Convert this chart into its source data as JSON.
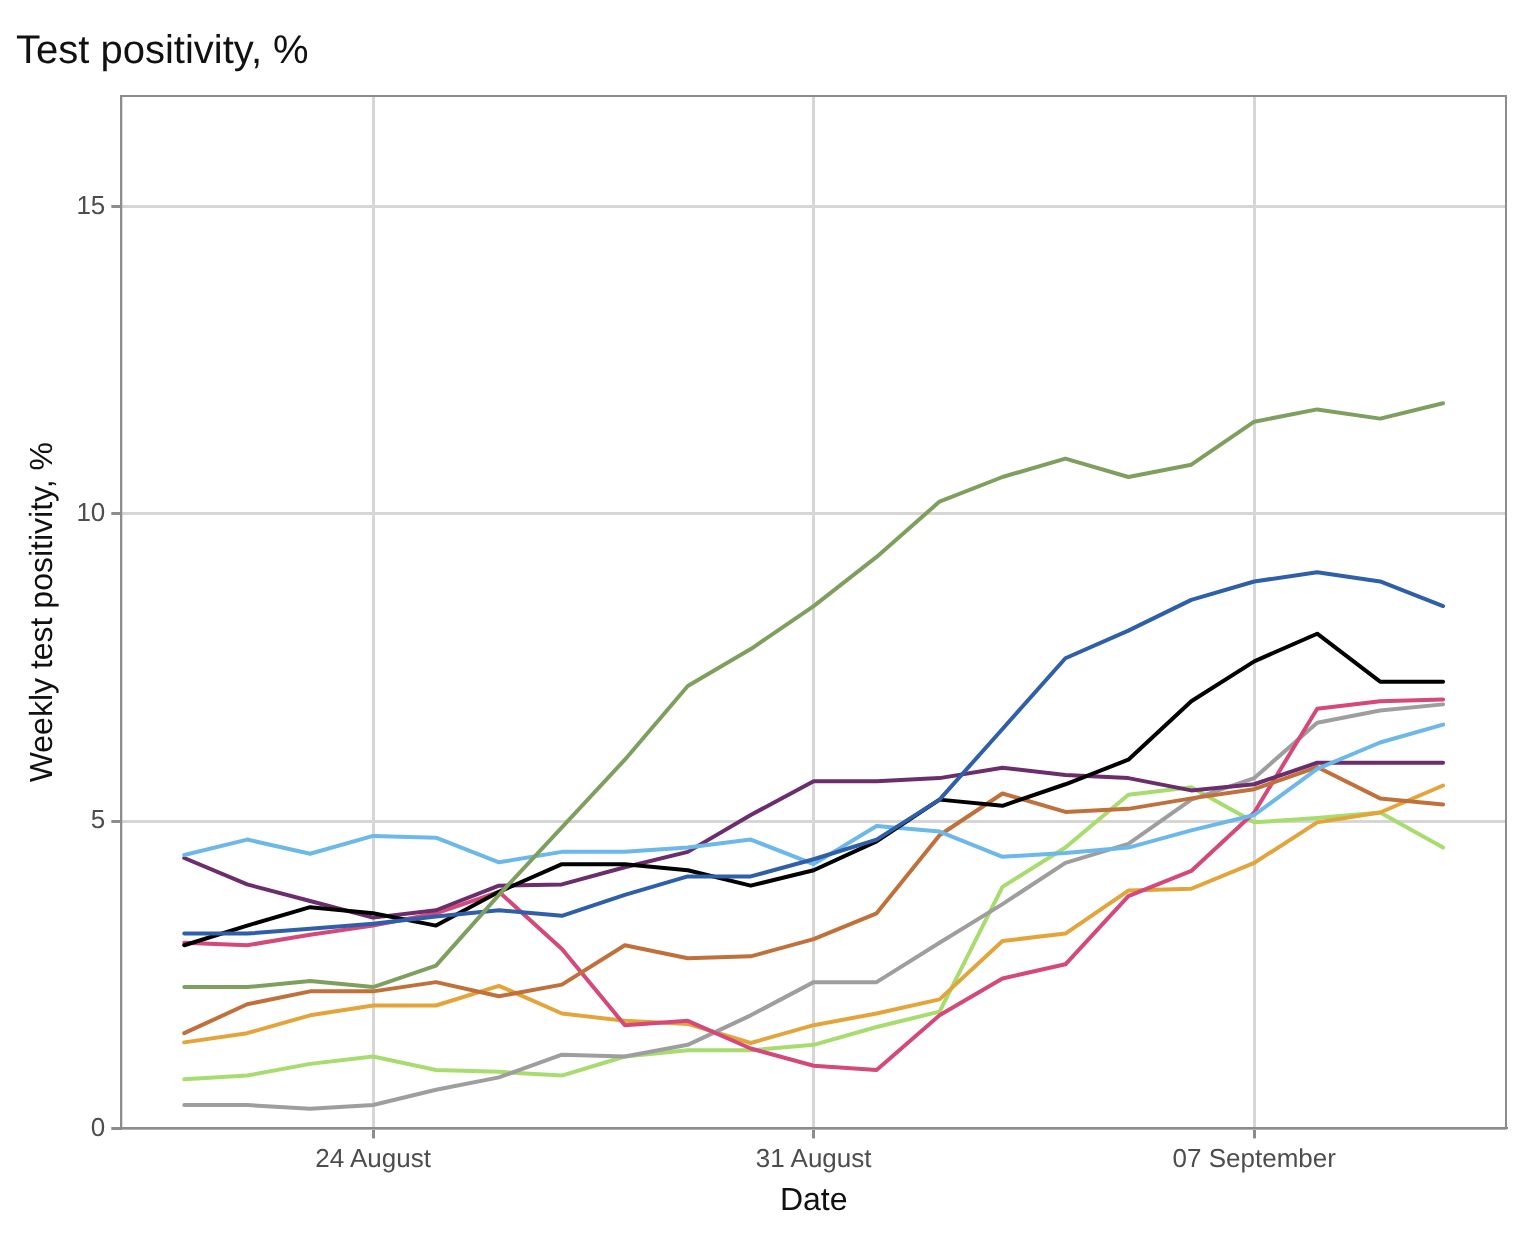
{
  "chart_data": {
    "type": "line",
    "title": "Test positivity, %",
    "xlabel": "Date",
    "ylabel": "Weekly test positivity, %",
    "x": [
      "--08-21",
      "--08-22",
      "--08-23",
      "--08-24",
      "--08-25",
      "--08-26",
      "--08-27",
      "--08-28",
      "--08-29",
      "--08-30",
      "--08-31",
      "--09-01",
      "--09-02",
      "--09-03",
      "--09-04",
      "--09-05",
      "--09-06",
      "--09-07",
      "--09-08",
      "--09-09",
      "--09-10"
    ],
    "xlim": [
      "--08-20",
      "--09-11"
    ],
    "xticks": [
      {
        "value": "--08-24",
        "label": "24 August"
      },
      {
        "value": "--08-31",
        "label": "31 August"
      },
      {
        "value": "--09-07",
        "label": "07 September"
      }
    ],
    "ylim": [
      0,
      16.8
    ],
    "yticks": [
      0,
      5,
      10,
      15
    ],
    "grid": true,
    "legend": false,
    "marker": "none",
    "line_style": "solid",
    "series": [
      {
        "color": "#7f9f5f",
        "values": [
          2.3,
          2.3,
          2.4,
          2.3,
          2.65,
          3.8,
          4.9,
          6.0,
          7.2,
          7.8,
          8.5,
          9.3,
          10.2,
          10.6,
          10.9,
          10.6,
          10.8,
          11.5,
          11.7,
          11.55,
          11.8
        ]
      },
      {
        "color": "#2e5fa8",
        "values": [
          3.17,
          3.17,
          3.25,
          3.33,
          3.45,
          3.55,
          3.46,
          3.8,
          4.1,
          4.1,
          4.38,
          4.7,
          5.35,
          6.5,
          7.65,
          8.1,
          8.6,
          8.9,
          9.05,
          8.9,
          8.5
        ]
      },
      {
        "color": "#000000",
        "values": [
          2.98,
          3.3,
          3.6,
          3.5,
          3.3,
          3.85,
          4.3,
          4.3,
          4.2,
          3.95,
          4.2,
          4.67,
          5.35,
          5.25,
          5.6,
          6.0,
          6.95,
          7.6,
          8.05,
          7.27,
          7.27
        ]
      },
      {
        "color": "#6cb8e8",
        "values": [
          4.45,
          4.7,
          4.47,
          4.76,
          4.73,
          4.33,
          4.5,
          4.5,
          4.57,
          4.7,
          4.3,
          4.92,
          4.83,
          4.42,
          4.48,
          4.57,
          4.85,
          5.1,
          5.85,
          6.28,
          6.57
        ]
      },
      {
        "color": "#6b2d6b",
        "values": [
          4.4,
          3.97,
          3.7,
          3.43,
          3.55,
          3.95,
          3.97,
          4.25,
          4.5,
          5.1,
          5.65,
          5.65,
          5.7,
          5.87,
          5.75,
          5.7,
          5.5,
          5.6,
          5.95,
          5.95,
          5.95
        ]
      },
      {
        "color": "#c0703a",
        "values": [
          1.55,
          2.02,
          2.23,
          2.23,
          2.38,
          2.15,
          2.34,
          2.98,
          2.77,
          2.8,
          3.08,
          3.5,
          4.77,
          5.45,
          5.15,
          5.2,
          5.37,
          5.52,
          5.88,
          5.37,
          5.27
        ]
      },
      {
        "color": "#d4487a",
        "values": [
          3.02,
          2.98,
          3.15,
          3.3,
          3.5,
          3.85,
          2.92,
          1.68,
          1.75,
          1.3,
          1.02,
          0.95,
          1.84,
          2.44,
          2.67,
          3.78,
          4.19,
          5.14,
          6.83,
          6.95,
          6.98
        ]
      },
      {
        "color": "#9e9e9e",
        "values": [
          0.38,
          0.38,
          0.32,
          0.38,
          0.63,
          0.83,
          1.2,
          1.17,
          1.36,
          1.84,
          2.38,
          2.38,
          3.02,
          3.65,
          4.32,
          4.63,
          5.35,
          5.7,
          6.6,
          6.8,
          6.9
        ]
      },
      {
        "color": "#e3a53a",
        "values": [
          1.4,
          1.55,
          1.84,
          2.0,
          2.0,
          2.32,
          1.87,
          1.75,
          1.7,
          1.39,
          1.68,
          1.87,
          2.1,
          3.05,
          3.17,
          3.87,
          3.9,
          4.32,
          4.98,
          5.14,
          5.58
        ]
      },
      {
        "color": "#a8dc6e",
        "values": [
          0.8,
          0.86,
          1.05,
          1.17,
          0.95,
          0.92,
          0.86,
          1.17,
          1.27,
          1.27,
          1.36,
          1.65,
          1.9,
          3.93,
          4.57,
          5.43,
          5.55,
          4.98,
          5.05,
          5.14,
          4.57
        ]
      }
    ]
  }
}
